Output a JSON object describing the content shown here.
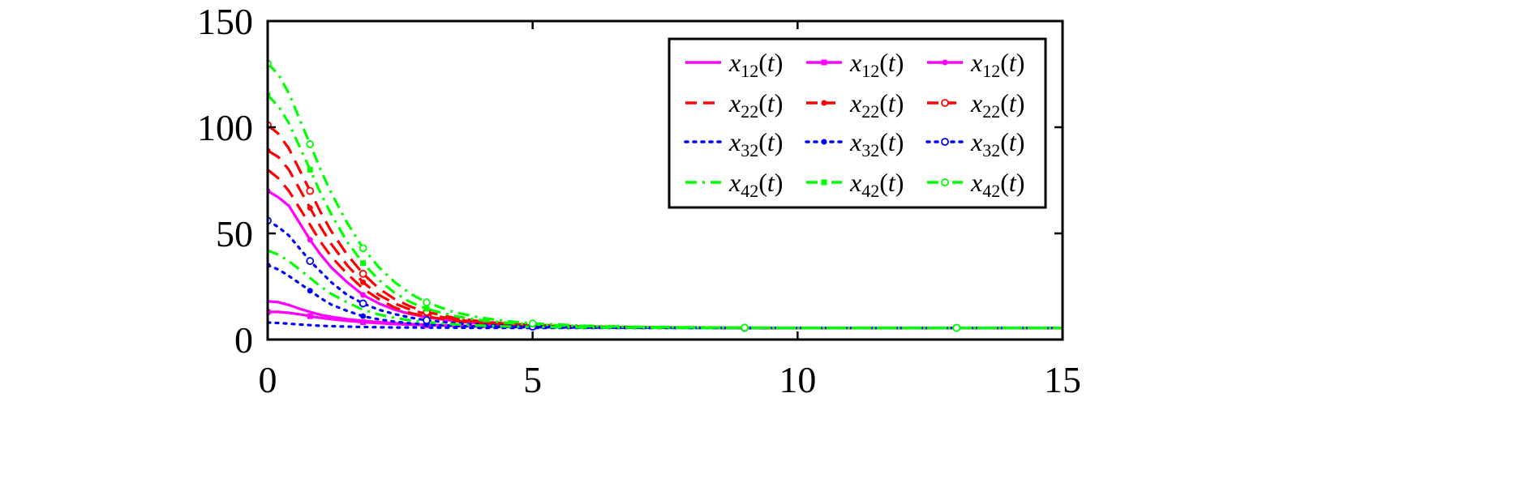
{
  "chart_data": {
    "type": "line",
    "title": "",
    "xlabel": "",
    "ylabel": "",
    "xlim": [
      0,
      15
    ],
    "ylim": [
      0,
      150
    ],
    "xticks": [
      0,
      5,
      10,
      15
    ],
    "yticks": [
      0,
      50,
      100,
      150
    ],
    "x_tick_labels": [
      "0",
      "5",
      "10",
      "15"
    ],
    "y_tick_labels": [
      "0",
      "50",
      "100",
      "150"
    ],
    "grid": false,
    "legend_position": "top-right",
    "legend": [
      {
        "base": "x",
        "sub": "12",
        "arg": "(t)",
        "color": "#ff00ff",
        "dash": "solid",
        "marker": "none"
      },
      {
        "base": "x",
        "sub": "12",
        "arg": "(t)",
        "color": "#ff00ff",
        "dash": "solid",
        "marker": "square"
      },
      {
        "base": "x",
        "sub": "12",
        "arg": "(t)",
        "color": "#ff00ff",
        "dash": "solid",
        "marker": "circle"
      },
      {
        "base": "x",
        "sub": "22",
        "arg": "(t)",
        "color": "#ff0000",
        "dash": "dashed",
        "marker": "none"
      },
      {
        "base": "x",
        "sub": "22",
        "arg": "(t)",
        "color": "#ff0000",
        "dash": "dashed",
        "marker": "dot"
      },
      {
        "base": "x",
        "sub": "22",
        "arg": "(t)",
        "color": "#ff0000",
        "dash": "dashed",
        "marker": "open-circle"
      },
      {
        "base": "x",
        "sub": "32",
        "arg": "(t)",
        "color": "#0000ff",
        "dash": "dotted",
        "marker": "none"
      },
      {
        "base": "x",
        "sub": "32",
        "arg": "(t)",
        "color": "#0000ff",
        "dash": "dotted",
        "marker": "dot"
      },
      {
        "base": "x",
        "sub": "32",
        "arg": "(t)",
        "color": "#0000ff",
        "dash": "dotted",
        "marker": "open-circle"
      },
      {
        "base": "x",
        "sub": "42",
        "arg": "(t)",
        "color": "#00ff00",
        "dash": "dashdot",
        "marker": "none"
      },
      {
        "base": "x",
        "sub": "42",
        "arg": "(t)",
        "color": "#00ff00",
        "dash": "dashdot",
        "marker": "square"
      },
      {
        "base": "x",
        "sub": "42",
        "arg": "(t)",
        "color": "#00ff00",
        "dash": "dashdot",
        "marker": "open-circle"
      }
    ],
    "x": [
      0,
      0.2,
      0.4,
      0.6,
      0.8,
      1,
      1.2,
      1.5,
      1.8,
      2.1,
      2.4,
      2.7,
      3,
      3.5,
      4,
      4.5,
      5,
      6,
      7,
      8,
      9,
      10,
      11,
      12,
      13,
      14,
      15
    ],
    "series": [
      {
        "color": "#ff00ff",
        "dash": "solid",
        "marker": "none",
        "values": [
          18,
          17.6,
          16.3,
          14.5,
          13.0,
          11.6,
          10.7,
          9.6,
          8.8,
          8.2,
          7.7,
          7.3,
          7.0,
          6.6,
          6.3,
          6.1,
          6.0,
          5.8,
          5.7,
          5.6,
          5.6,
          5.5,
          5.5,
          5.5,
          5.5,
          5.5,
          5.5
        ]
      },
      {
        "color": "#ff00ff",
        "dash": "solid",
        "marker": "square",
        "values": [
          13,
          13.0,
          12.6,
          11.9,
          11.0,
          10.2,
          9.6,
          8.8,
          8.2,
          7.7,
          7.3,
          7.0,
          6.8,
          6.5,
          6.2,
          6.0,
          5.9,
          5.7,
          5.6,
          5.6,
          5.5,
          5.5,
          5.5,
          5.5,
          5.5,
          5.5,
          5.5
        ]
      },
      {
        "color": "#ff00ff",
        "dash": "solid",
        "marker": "circle",
        "values": [
          70,
          67,
          63,
          55,
          47,
          40,
          34,
          27,
          21,
          17,
          14,
          12,
          10.5,
          8.8,
          7.6,
          6.9,
          6.4,
          5.9,
          5.7,
          5.6,
          5.5,
          5.5,
          5.5,
          5.5,
          5.5,
          5.5,
          5.5
        ]
      },
      {
        "color": "#ff0000",
        "dash": "dashed",
        "marker": "none",
        "values": [
          80,
          76,
          70,
          62,
          54,
          46,
          39,
          31,
          24,
          19,
          15,
          12.5,
          10.8,
          9.0,
          7.8,
          7.0,
          6.5,
          6.0,
          5.7,
          5.6,
          5.5,
          5.5,
          5.5,
          5.5,
          5.5,
          5.5,
          5.5
        ]
      },
      {
        "color": "#ff0000",
        "dash": "dashed",
        "marker": "dot",
        "values": [
          89,
          86,
          80,
          71,
          62,
          53,
          45,
          35,
          27,
          21,
          17,
          14,
          12,
          9.6,
          8.2,
          7.3,
          6.7,
          6.1,
          5.8,
          5.6,
          5.5,
          5.5,
          5.5,
          5.5,
          5.5,
          5.5,
          5.5
        ]
      },
      {
        "color": "#ff0000",
        "dash": "dashed",
        "marker": "open-circle",
        "values": [
          101,
          97,
          90,
          80,
          70,
          60,
          51,
          40,
          31,
          24,
          19,
          15.5,
          13,
          10.3,
          8.6,
          7.5,
          6.9,
          6.2,
          5.8,
          5.6,
          5.5,
          5.5,
          5.5,
          5.5,
          5.5,
          5.5,
          5.5
        ]
      },
      {
        "color": "#0000ff",
        "dash": "dotted",
        "marker": "none",
        "values": [
          8,
          7.8,
          7.5,
          7.1,
          6.8,
          6.5,
          6.3,
          6.1,
          5.9,
          5.8,
          5.7,
          5.7,
          5.6,
          5.6,
          5.5,
          5.5,
          5.5,
          5.5,
          5.5,
          5.5,
          5.5,
          5.5,
          5.5,
          5.5,
          5.5,
          5.5,
          5.5
        ]
      },
      {
        "color": "#0000ff",
        "dash": "dotted",
        "marker": "dot",
        "values": [
          35,
          33,
          30,
          26.5,
          23,
          19.5,
          16.5,
          13.5,
          11,
          9.5,
          8.4,
          7.6,
          7.1,
          6.5,
          6.1,
          5.9,
          5.8,
          5.6,
          5.5,
          5.5,
          5.5,
          5.5,
          5.5,
          5.5,
          5.5,
          5.5,
          5.5
        ]
      },
      {
        "color": "#0000ff",
        "dash": "dotted",
        "marker": "open-circle",
        "values": [
          56,
          53,
          49,
          43,
          37,
          32,
          27,
          21,
          17,
          14,
          12,
          10.3,
          9.1,
          7.8,
          7.0,
          6.5,
          6.1,
          5.8,
          5.6,
          5.5,
          5.5,
          5.5,
          5.5,
          5.5,
          5.5,
          5.5,
          5.5
        ]
      },
      {
        "color": "#00ff00",
        "dash": "dashdot",
        "marker": "none",
        "values": [
          42,
          40,
          37,
          33,
          29,
          25,
          21.5,
          17.5,
          14,
          11.8,
          10.2,
          9.0,
          8.2,
          7.2,
          6.6,
          6.2,
          6.0,
          5.7,
          5.6,
          5.5,
          5.5,
          5.5,
          5.5,
          5.5,
          5.5,
          5.5,
          5.5
        ]
      },
      {
        "color": "#00ff00",
        "dash": "dashdot",
        "marker": "square",
        "values": [
          115,
          110,
          102,
          91,
          80,
          69,
          59,
          46,
          36,
          28,
          22,
          17.5,
          14.5,
          11.2,
          9.2,
          7.9,
          7.1,
          6.3,
          5.9,
          5.7,
          5.6,
          5.5,
          5.5,
          5.5,
          5.5,
          5.5,
          5.5
        ]
      },
      {
        "color": "#00ff00",
        "dash": "dashdot",
        "marker": "open-circle",
        "values": [
          130,
          125,
          116,
          104,
          92,
          80,
          69,
          55,
          43,
          34,
          27,
          21.5,
          17.5,
          13,
          10.4,
          8.7,
          7.6,
          6.5,
          6.0,
          5.8,
          5.6,
          5.5,
          5.5,
          5.5,
          5.5,
          5.5,
          5.5
        ]
      }
    ]
  }
}
